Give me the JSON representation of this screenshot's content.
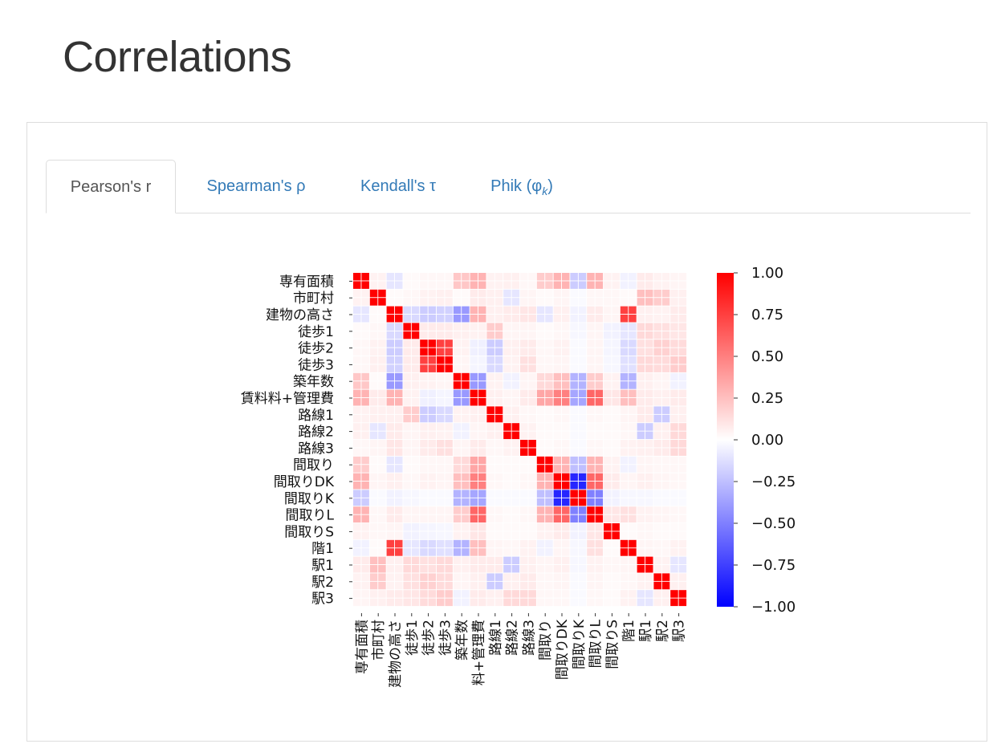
{
  "page": {
    "title": "Correlations"
  },
  "tabs": [
    {
      "label": "Pearson's r",
      "active": true
    },
    {
      "label": "Spearman's ρ",
      "active": false
    },
    {
      "label": "Kendall's τ",
      "active": false
    },
    {
      "label": "Phik (φ",
      "sub": "k",
      "suffix": ")",
      "active": false
    }
  ],
  "chart_data": {
    "type": "heatmap",
    "title": "",
    "variables": [
      "専有面積",
      "市町村",
      "建物の高さ",
      "徒歩1",
      "徒歩2",
      "徒歩3",
      "築年数",
      "賃料料+管理費",
      "路線1",
      "路線2",
      "路線3",
      "間取り",
      "間取りDK",
      "間取りK",
      "間取りL",
      "間取りS",
      "階1",
      "駅1",
      "駅2",
      "駅3"
    ],
    "x_tick_labels": [
      "専有面積",
      "市町村",
      "建物の高さ",
      "徒歩1",
      "徒歩2",
      "徒歩3",
      "築年数",
      "料+管理費",
      "路線1",
      "路線2",
      "路線3",
      "間取り",
      "間取りDK",
      "間取りK",
      "間取りL",
      "間取りS",
      "階1",
      "駅1",
      "駅2",
      "駅3"
    ],
    "colorbar": {
      "min": -1.0,
      "max": 1.0,
      "ticks": [
        "1.00",
        "0.75",
        "0.50",
        "0.25",
        "0.00",
        "−0.25",
        "−0.50",
        "−0.75",
        "−1.00"
      ],
      "colors": [
        "#0000ff",
        "#ffffff",
        "#ff0000"
      ]
    },
    "matrix": [
      [
        1,
        0.05,
        -0.1,
        0.02,
        0.03,
        0.03,
        0.22,
        0.3,
        0.05,
        0.06,
        0.03,
        0.2,
        0.3,
        -0.2,
        0.3,
        0.05,
        -0.05,
        0.08,
        0.05,
        0.04
      ],
      [
        0.05,
        1,
        0.02,
        0.03,
        0.05,
        0.06,
        0.02,
        0.08,
        0.06,
        -0.1,
        0.04,
        0.02,
        0.04,
        -0.02,
        0.03,
        0.03,
        0.02,
        0.25,
        0.2,
        0.06
      ],
      [
        -0.1,
        0.02,
        1,
        -0.15,
        -0.2,
        -0.18,
        -0.4,
        0.3,
        0.06,
        0.08,
        0.1,
        -0.1,
        0.06,
        -0.05,
        0.08,
        0.04,
        0.75,
        0.06,
        0.05,
        0.08
      ],
      [
        0.02,
        0.03,
        -0.15,
        1,
        0.08,
        0.08,
        0.06,
        0.05,
        0.2,
        0.04,
        0.04,
        0.02,
        0.03,
        -0.03,
        0.04,
        -0.05,
        -0.1,
        0.15,
        0.12,
        0.1
      ],
      [
        0.03,
        0.05,
        -0.2,
        0.08,
        1,
        0.75,
        0.05,
        -0.06,
        -0.2,
        0.06,
        0.08,
        0.03,
        0.05,
        -0.02,
        0.04,
        -0.04,
        -0.15,
        0.12,
        0.18,
        0.14
      ],
      [
        0.03,
        0.06,
        -0.18,
        0.08,
        0.75,
        1,
        0.04,
        -0.04,
        -0.15,
        0.05,
        0.12,
        0.03,
        0.04,
        -0.02,
        0.04,
        -0.03,
        -0.12,
        0.15,
        0.14,
        0.2
      ],
      [
        0.22,
        0.02,
        -0.4,
        0.06,
        0.05,
        0.04,
        1,
        -0.4,
        0.05,
        -0.05,
        0.04,
        0.15,
        0.25,
        -0.3,
        0.2,
        0.05,
        -0.3,
        0.06,
        0.04,
        -0.05
      ],
      [
        0.3,
        0.08,
        0.3,
        0.05,
        -0.06,
        -0.04,
        -0.4,
        1,
        0.06,
        0.04,
        0.08,
        0.35,
        0.5,
        -0.35,
        0.6,
        0.1,
        0.25,
        0.08,
        0.06,
        0.08
      ],
      [
        0.05,
        0.06,
        0.06,
        0.2,
        -0.2,
        -0.15,
        0.05,
        0.06,
        1,
        0.06,
        0.03,
        0.02,
        0.03,
        -0.02,
        0.03,
        0.02,
        0.04,
        0.08,
        -0.2,
        0.06
      ],
      [
        0.06,
        -0.1,
        0.08,
        0.04,
        0.06,
        0.05,
        -0.05,
        0.04,
        0.06,
        1,
        0.05,
        0.02,
        0.02,
        -0.02,
        0.02,
        0.02,
        0.03,
        -0.2,
        0.06,
        0.15
      ],
      [
        0.03,
        0.04,
        0.1,
        0.04,
        0.08,
        0.12,
        0.04,
        0.08,
        0.03,
        0.05,
        1,
        0.02,
        0.03,
        -0.02,
        0.03,
        0.02,
        0.05,
        0.06,
        0.08,
        0.15
      ],
      [
        0.2,
        0.02,
        -0.1,
        0.02,
        0.03,
        0.03,
        0.15,
        0.35,
        0.02,
        0.02,
        0.02,
        1,
        0.3,
        -0.25,
        0.3,
        0.05,
        -0.05,
        0.04,
        0.03,
        0.03
      ],
      [
        0.3,
        0.04,
        0.06,
        0.03,
        0.05,
        0.04,
        0.25,
        0.5,
        0.03,
        0.02,
        0.03,
        0.3,
        1,
        -0.85,
        0.6,
        0.08,
        0.04,
        0.06,
        0.04,
        0.03
      ],
      [
        -0.2,
        -0.02,
        -0.05,
        -0.03,
        -0.02,
        -0.02,
        -0.3,
        -0.35,
        -0.02,
        -0.02,
        -0.02,
        -0.25,
        -0.85,
        1,
        -0.5,
        -0.05,
        -0.03,
        -0.03,
        -0.02,
        -0.02
      ],
      [
        0.3,
        0.03,
        0.08,
        0.04,
        0.04,
        0.04,
        0.2,
        0.6,
        0.03,
        0.02,
        0.03,
        0.3,
        0.6,
        -0.5,
        1,
        0.1,
        0.12,
        0.05,
        0.04,
        0.03
      ],
      [
        0.05,
        0.03,
        0.04,
        -0.05,
        -0.04,
        -0.03,
        0.05,
        0.1,
        0.02,
        0.02,
        0.02,
        0.05,
        0.08,
        -0.05,
        0.1,
        1,
        0.02,
        0.03,
        0.02,
        0.02
      ],
      [
        -0.05,
        0.02,
        0.75,
        -0.1,
        -0.15,
        -0.12,
        -0.3,
        0.25,
        0.04,
        0.03,
        0.05,
        -0.05,
        0.04,
        -0.03,
        0.12,
        0.02,
        1,
        0.04,
        0.03,
        0.05
      ],
      [
        0.08,
        0.25,
        0.06,
        0.15,
        0.12,
        0.15,
        0.06,
        0.08,
        0.08,
        -0.2,
        0.06,
        0.04,
        0.06,
        -0.03,
        0.05,
        0.03,
        0.04,
        1,
        0.05,
        -0.1
      ],
      [
        0.05,
        0.2,
        0.05,
        0.12,
        0.18,
        0.14,
        0.04,
        0.06,
        -0.2,
        0.06,
        0.08,
        0.03,
        0.04,
        -0.02,
        0.04,
        0.02,
        0.03,
        0.05,
        1,
        0.06
      ],
      [
        0.04,
        0.06,
        0.08,
        0.1,
        0.14,
        0.2,
        -0.05,
        0.08,
        0.06,
        0.15,
        0.15,
        0.03,
        0.03,
        -0.02,
        0.03,
        0.02,
        0.05,
        -0.1,
        0.06,
        1
      ]
    ]
  }
}
